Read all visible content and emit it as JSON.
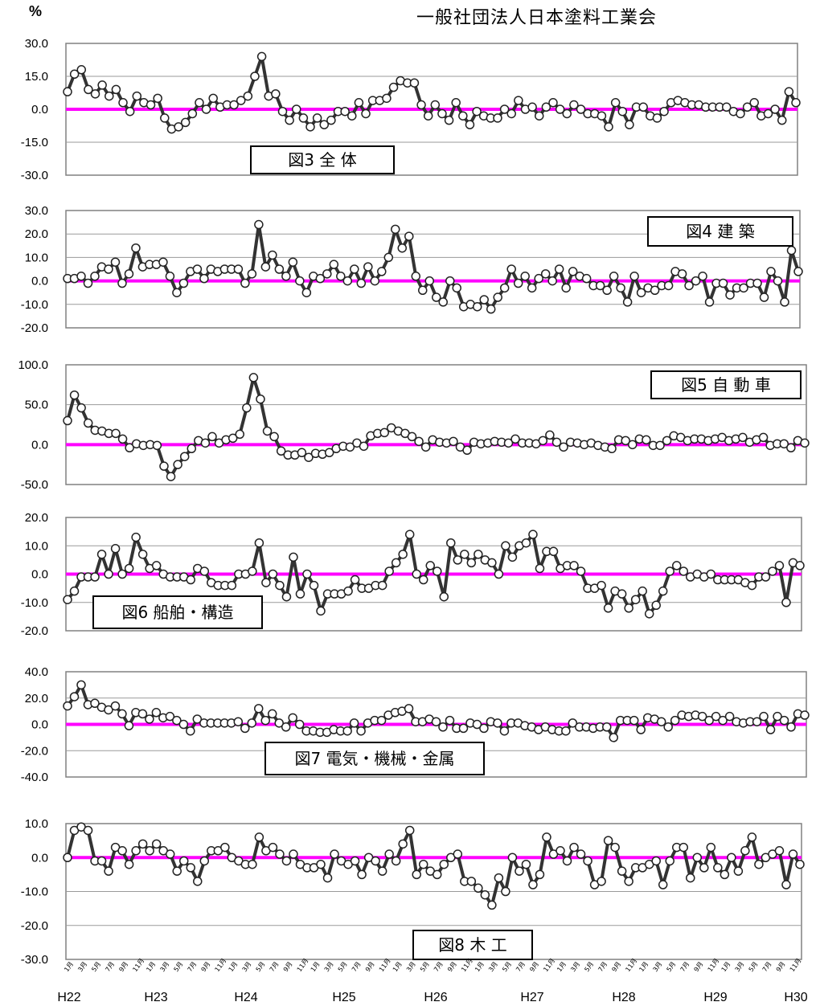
{
  "header": {
    "unit": "%",
    "organization": "一般社団法人日本塗料工業会"
  },
  "colors": {
    "line": "#333333",
    "zero_line": "#ff00ff",
    "marker_fill": "#ffffff",
    "grid": "#808080"
  },
  "chart_data": [
    {
      "type": "line",
      "title": "図3 全 体",
      "legend_position": "bottom-center",
      "ylim": [
        -30,
        30
      ],
      "yticks": [
        "30.0",
        "15.0",
        "0.0",
        "-15.0",
        "-30.0"
      ],
      "grid": true,
      "series": [
        {
          "values": [
            8,
            16,
            18,
            9,
            7,
            11,
            6,
            9,
            3,
            -1,
            6,
            3,
            2,
            5,
            -4,
            -9,
            -8,
            -6,
            -2,
            3,
            0,
            5,
            1,
            2,
            2,
            4,
            6,
            15,
            24,
            6,
            7,
            -1,
            -5,
            0,
            -4,
            -8,
            -4,
            -7,
            -5,
            -1,
            -1,
            -3,
            3,
            -2,
            4,
            4,
            5,
            10,
            13,
            12,
            12,
            2,
            -3,
            2,
            -2,
            -5,
            3,
            -3,
            -7,
            -1,
            -3,
            -4,
            -4,
            0,
            -2,
            4,
            0,
            1,
            -3,
            1,
            3,
            0,
            -2,
            2,
            0,
            -2,
            -2,
            -3,
            -8,
            3,
            -1,
            -7,
            1,
            1,
            -3,
            -4,
            -1,
            3,
            4,
            3,
            2,
            2,
            1,
            1,
            1,
            1,
            -1,
            -2,
            1,
            3,
            -3,
            -2,
            0,
            -5,
            8,
            3
          ]
        }
      ]
    },
    {
      "type": "line",
      "title": "図4 建 築",
      "legend_position": "top-right",
      "ylim": [
        -20,
        30
      ],
      "yticks": [
        "30.0",
        "20.0",
        "10.0",
        "0.0",
        "-10.0",
        "-20.0"
      ],
      "grid": true,
      "series": [
        {
          "values": [
            1,
            1,
            2,
            -1,
            2,
            6,
            5,
            8,
            -1,
            3,
            14,
            6,
            7,
            7,
            8,
            2,
            -5,
            -1,
            4,
            5,
            1,
            5,
            4,
            5,
            5,
            5,
            -1,
            3,
            24,
            6,
            11,
            5,
            2,
            8,
            0,
            -5,
            2,
            1,
            3,
            7,
            2,
            0,
            5,
            -1,
            6,
            0,
            4,
            10,
            22,
            14,
            19,
            2,
            -4,
            0,
            -7,
            -9,
            0,
            -3,
            -11,
            -10,
            -11,
            -8,
            -12,
            -7,
            -3,
            5,
            -1,
            2,
            -3,
            1,
            3,
            0,
            5,
            -3,
            4,
            2,
            1,
            -2,
            -2,
            -4,
            2,
            -3,
            -9,
            2,
            -5,
            -3,
            -4,
            -2,
            -2,
            4,
            3,
            -2,
            0,
            2,
            -9,
            -1,
            -1,
            -6,
            -3,
            -3,
            -1,
            -1,
            -7,
            4,
            0,
            -9,
            13,
            4
          ]
        }
      ]
    },
    {
      "type": "line",
      "title": "図5 自 動 車",
      "legend_position": "top-right",
      "ylim": [
        -50,
        100
      ],
      "yticks": [
        "100.0",
        "50.0",
        "0.0",
        "-50.0"
      ],
      "grid": true,
      "series": [
        {
          "values": [
            30,
            62,
            46,
            27,
            18,
            17,
            14,
            14,
            7,
            -4,
            1,
            -1,
            0,
            -1,
            -27,
            -40,
            -25,
            -15,
            -5,
            5,
            2,
            10,
            2,
            6,
            8,
            13,
            46,
            84,
            57,
            17,
            10,
            -8,
            -13,
            -13,
            -10,
            -16,
            -11,
            -12,
            -10,
            -5,
            -2,
            -3,
            2,
            -2,
            11,
            14,
            15,
            21,
            17,
            14,
            10,
            4,
            -3,
            6,
            3,
            2,
            4,
            -3,
            -7,
            3,
            1,
            2,
            4,
            3,
            2,
            7,
            2,
            2,
            1,
            5,
            12,
            3,
            -3,
            3,
            2,
            0,
            2,
            -1,
            -3,
            -5,
            6,
            5,
            0,
            7,
            6,
            -1,
            -1,
            5,
            11,
            9,
            5,
            7,
            7,
            5,
            7,
            9,
            5,
            7,
            9,
            3,
            6,
            9,
            -1,
            1,
            1,
            -4,
            5,
            2
          ]
        }
      ]
    },
    {
      "type": "line",
      "title": "図6 船舶・構造",
      "legend_position": "bottom-left",
      "ylim": [
        -20,
        20
      ],
      "yticks": [
        "20.0",
        "10.0",
        "0.0",
        "-10.0",
        "-20.0"
      ],
      "grid": true,
      "series": [
        {
          "values": [
            -9,
            -6,
            -1,
            -1,
            -1,
            7,
            0,
            9,
            0,
            2,
            13,
            7,
            2,
            3,
            0,
            -1,
            -1,
            -1,
            -2,
            2,
            1,
            -3,
            -4,
            -4,
            -4,
            0,
            0,
            1,
            11,
            -3,
            0,
            -4,
            -8,
            6,
            -7,
            0,
            -4,
            -13,
            -7,
            -7,
            -7,
            -6,
            -2,
            -5,
            -5,
            -4,
            -4,
            1,
            4,
            7,
            14,
            0,
            -2,
            3,
            1,
            -8,
            11,
            5,
            7,
            4,
            7,
            5,
            4,
            0,
            10,
            6,
            10,
            11,
            14,
            2,
            8,
            8,
            2,
            3,
            3,
            1,
            -5,
            -5,
            -4,
            -12,
            -6,
            -7,
            -12,
            -9,
            -6,
            -14,
            -11,
            -6,
            1,
            3,
            1,
            -1,
            0,
            -1,
            0,
            -2,
            -2,
            -2,
            -2,
            -3,
            -4,
            -1,
            -1,
            1,
            3,
            -10,
            4,
            3
          ]
        }
      ]
    },
    {
      "type": "line",
      "title": "図7 電気・機械・金属",
      "legend_position": "bottom-center",
      "ylim": [
        -40,
        40
      ],
      "yticks": [
        "40.0",
        "20.0",
        "0.0",
        "-20.0",
        "-40.0"
      ],
      "grid": true,
      "series": [
        {
          "values": [
            14,
            21,
            30,
            15,
            16,
            13,
            11,
            14,
            8,
            -1,
            9,
            8,
            4,
            9,
            5,
            6,
            3,
            0,
            -5,
            4,
            1,
            1,
            1,
            1,
            1,
            2,
            -3,
            1,
            12,
            3,
            8,
            1,
            -2,
            5,
            0,
            -5,
            -5,
            -6,
            -6,
            -4,
            -5,
            -5,
            1,
            -5,
            1,
            3,
            3,
            7,
            9,
            10,
            12,
            2,
            2,
            4,
            2,
            -2,
            3,
            -3,
            -3,
            1,
            0,
            -3,
            2,
            1,
            -5,
            1,
            1,
            -1,
            -2,
            -4,
            -2,
            -4,
            -5,
            -5,
            1,
            -2,
            -2,
            -3,
            -2,
            -2,
            -10,
            3,
            3,
            3,
            -4,
            5,
            4,
            2,
            -2,
            3,
            7,
            6,
            7,
            6,
            3,
            6,
            3,
            6,
            2,
            1,
            2,
            2,
            6,
            -4,
            6,
            3,
            -2,
            8,
            7
          ]
        }
      ]
    },
    {
      "type": "line",
      "title": "図8 木 工",
      "legend_position": "bottom-center",
      "ylim": [
        -30,
        10
      ],
      "yticks": [
        "10.0",
        "0.0",
        "-10.0",
        "-20.0",
        "-30.0"
      ],
      "grid": true,
      "series": [
        {
          "values": [
            0,
            8,
            9,
            8,
            -1,
            -1,
            -4,
            3,
            2,
            -2,
            2,
            4,
            2,
            4,
            2,
            1,
            -4,
            -1,
            -3,
            -7,
            -1,
            2,
            2,
            3,
            0,
            -1,
            -2,
            -2,
            6,
            2,
            3,
            1,
            -1,
            1,
            -2,
            -3,
            -3,
            -2,
            -6,
            1,
            -1,
            -2,
            -1,
            -5,
            0,
            -1,
            -4,
            1,
            -1,
            4,
            8,
            -5,
            -2,
            -4,
            -5,
            -2,
            0,
            1,
            -7,
            -7,
            -9,
            -11,
            -14,
            -6,
            -10,
            0,
            -4,
            -2,
            -8,
            -5,
            6,
            1,
            2,
            -1,
            3,
            1,
            -1,
            -8,
            -7,
            5,
            3,
            -4,
            -7,
            -3,
            -3,
            -2,
            -1,
            -8,
            -1,
            3,
            3,
            -6,
            0,
            -3,
            3,
            -3,
            -5,
            0,
            -4,
            2,
            6,
            -2,
            0,
            1,
            2,
            -8,
            1,
            -2
          ]
        }
      ]
    }
  ],
  "xaxis": {
    "month_labels": [
      "1月",
      "3月",
      "5月",
      "7月",
      "9月",
      "11月"
    ],
    "year_labels": [
      "H22",
      "H23",
      "H24",
      "H25",
      "H26",
      "H27",
      "H28",
      "H29",
      "H30"
    ]
  }
}
